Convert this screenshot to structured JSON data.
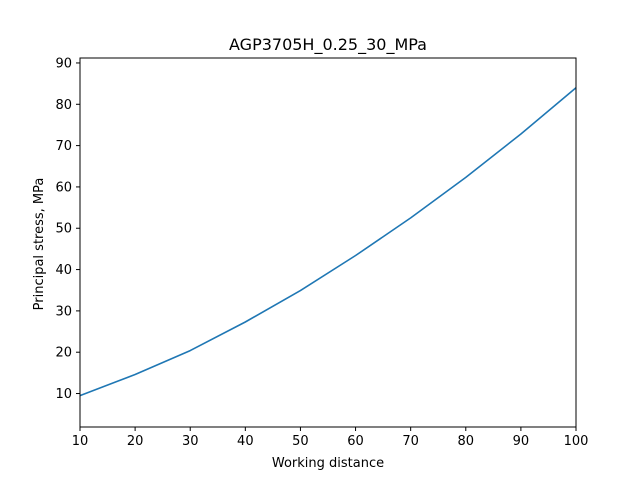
{
  "chart_data": {
    "type": "line",
    "title": "AGP3705H_0.25_30_MPa",
    "xlabel": "Working distance",
    "ylabel": "Principal stress, MPa",
    "xlim": [
      10,
      100
    ],
    "ylim": [
      1.9,
      91.2
    ],
    "x_ticks": [
      "10",
      "20",
      "30",
      "40",
      "50",
      "60",
      "70",
      "80",
      "90",
      "100"
    ],
    "y_ticks": [
      "10",
      "20",
      "30",
      "40",
      "50",
      "60",
      "70",
      "80",
      "90"
    ],
    "grid": false,
    "series": [
      {
        "color": "#1f77b4",
        "x": [
          10,
          20,
          30,
          40,
          50,
          60,
          70,
          80,
          90,
          100
        ],
        "y": [
          9.5,
          14.6,
          20.4,
          27.3,
          34.9,
          43.4,
          52.5,
          62.3,
          72.8,
          84.0
        ]
      }
    ]
  }
}
